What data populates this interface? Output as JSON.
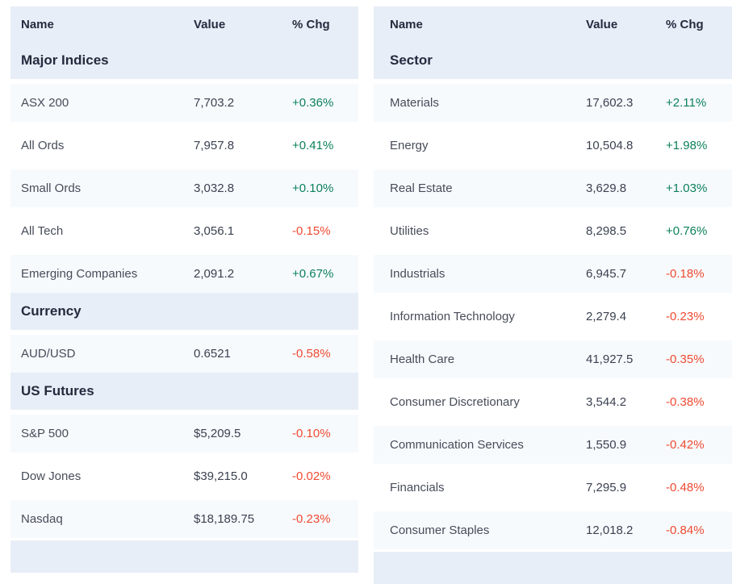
{
  "colors": {
    "band": "#e8eef7",
    "row_alt": "#f7fafd",
    "heading": "#242b3e",
    "positive": "#0c8159",
    "negative": "#ef4a31"
  },
  "tables": [
    {
      "id": "indices-futures-table",
      "columns": [
        "Name",
        "Value",
        "% Chg"
      ],
      "sections": [
        {
          "title": "Major Indices",
          "rows": [
            {
              "name": "ASX 200",
              "value": "7,703.2",
              "chg": "+0.36%"
            },
            {
              "name": "All Ords",
              "value": "7,957.8",
              "chg": "+0.41%"
            },
            {
              "name": "Small Ords",
              "value": "3,032.8",
              "chg": "+0.10%"
            },
            {
              "name": "All Tech",
              "value": "3,056.1",
              "chg": "-0.15%"
            },
            {
              "name": "Emerging Companies",
              "value": "2,091.2",
              "chg": "+0.67%"
            }
          ]
        },
        {
          "title": "Currency",
          "rows": [
            {
              "name": "AUD/USD",
              "value": "0.6521",
              "chg": "-0.58%"
            }
          ]
        },
        {
          "title": "US Futures",
          "rows": [
            {
              "name": "S&P 500",
              "value": "$5,209.5",
              "chg": "-0.10%"
            },
            {
              "name": "Dow Jones",
              "value": "$39,215.0",
              "chg": "-0.02%"
            },
            {
              "name": "Nasdaq",
              "value": "$18,189.75",
              "chg": "-0.23%"
            }
          ]
        }
      ]
    },
    {
      "id": "sector-table",
      "columns": [
        "Name",
        "Value",
        "% Chg"
      ],
      "sections": [
        {
          "title": "Sector",
          "rows": [
            {
              "name": "Materials",
              "value": "17,602.3",
              "chg": "+2.11%"
            },
            {
              "name": "Energy",
              "value": "10,504.8",
              "chg": "+1.98%"
            },
            {
              "name": "Real Estate",
              "value": "3,629.8",
              "chg": "+1.03%"
            },
            {
              "name": "Utilities",
              "value": "8,298.5",
              "chg": "+0.76%"
            },
            {
              "name": "Industrials",
              "value": "6,945.7",
              "chg": "-0.18%"
            },
            {
              "name": "Information Technology",
              "value": "2,279.4",
              "chg": "-0.23%"
            },
            {
              "name": "Health Care",
              "value": "41,927.5",
              "chg": "-0.35%"
            },
            {
              "name": "Consumer Discretionary",
              "value": "3,544.2",
              "chg": "-0.38%"
            },
            {
              "name": "Communication Services",
              "value": "1,550.9",
              "chg": "-0.42%"
            },
            {
              "name": "Financials",
              "value": "7,295.9",
              "chg": "-0.48%"
            },
            {
              "name": "Consumer Staples",
              "value": "12,018.2",
              "chg": "-0.84%"
            }
          ]
        }
      ]
    }
  ]
}
